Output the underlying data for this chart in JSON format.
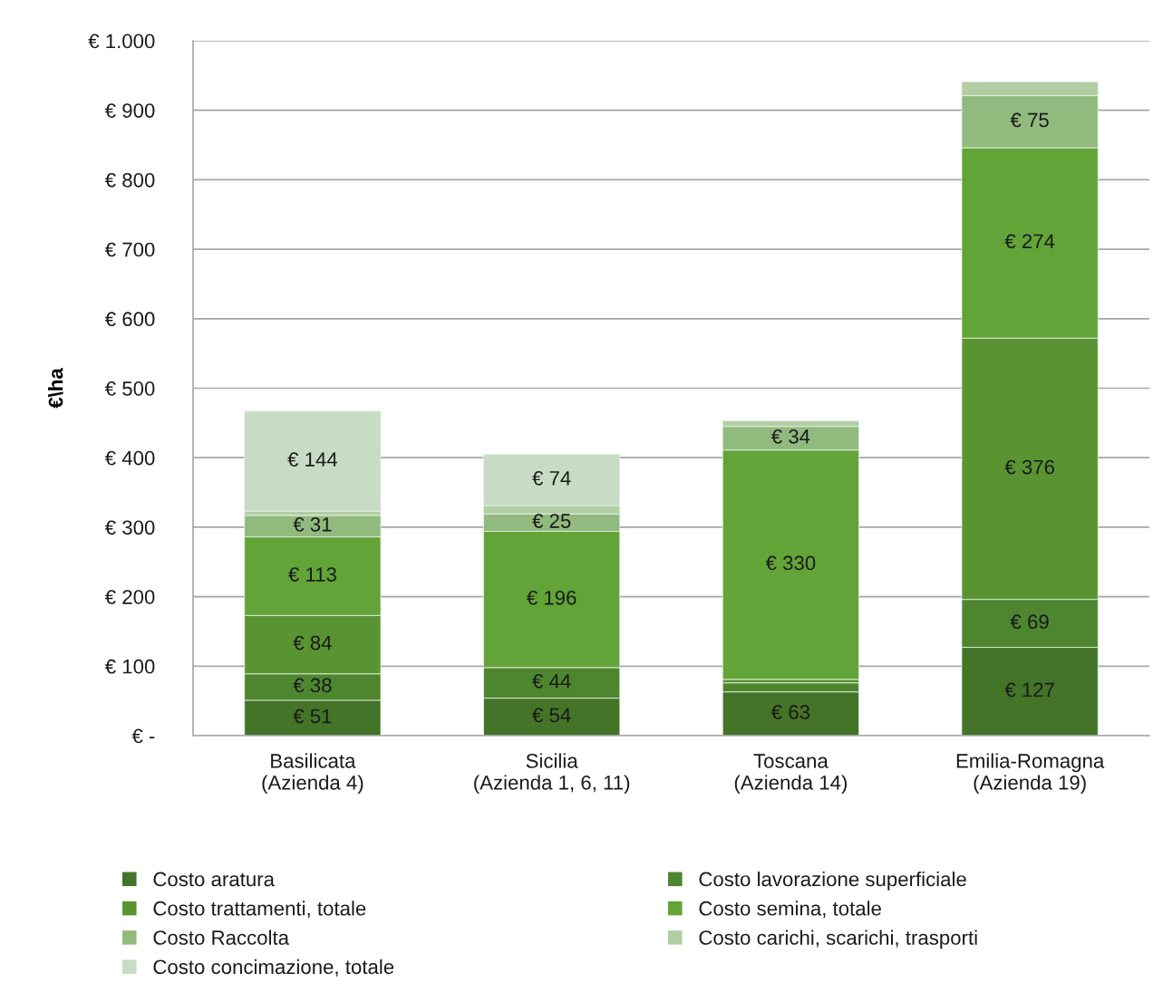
{
  "chart_data": {
    "type": "bar",
    "stacked": true,
    "ylabel": "€\\ha",
    "categories": [
      "Basilicata\n(Azienda 4)",
      "Sicilia\n(Azienda 1, 6, 11)",
      "Toscana\n(Azienda 14)",
      "Emilia-Romagna\n(Azienda 19)"
    ],
    "series": [
      {
        "name": "Costo aratura",
        "color": "#437428",
        "values": [
          51,
          54,
          63,
          127
        ],
        "value_labels": [
          "€ 51",
          "€ 54",
          "€ 63",
          "€ 127"
        ]
      },
      {
        "name": "Costo lavorazione superficiale",
        "color": "#4e8630",
        "values": [
          38,
          44,
          13,
          69
        ],
        "value_labels": [
          "€ 38",
          "€ 44",
          null,
          "€ 69"
        ]
      },
      {
        "name": "Costo trattamenti, totale",
        "color": "#5a9432",
        "values": [
          84,
          null,
          5,
          376
        ],
        "value_labels": [
          "€ 84",
          null,
          null,
          "€ 376"
        ]
      },
      {
        "name": "Costo semina, totale",
        "color": "#62a438",
        "values": [
          113,
          196,
          330,
          274
        ],
        "value_labels": [
          "€ 113",
          "€ 196",
          "€ 330",
          "€ 274"
        ]
      },
      {
        "name": "Costo Raccolta",
        "color": "#91ba7e",
        "values": [
          31,
          25,
          34,
          75
        ],
        "value_labels": [
          "€ 31",
          "€ 25",
          "€ 34",
          "€ 75"
        ]
      },
      {
        "name": "Costo carichi, scarichi, trasporti",
        "color": "#b1cea4",
        "values": [
          6,
          12,
          8,
          20
        ],
        "value_labels": [
          null,
          null,
          null,
          null
        ]
      },
      {
        "name": "Costo concimazione, totale",
        "color": "#c8dcc5",
        "values": [
          144,
          74,
          null,
          null
        ],
        "value_labels": [
          "€ 144",
          "€ 74",
          null,
          null
        ]
      }
    ],
    "ylim": [
      0,
      1000
    ],
    "yticks": [
      {
        "value": 0,
        "label": "€ -"
      },
      {
        "value": 100,
        "label": "€ 100"
      },
      {
        "value": 200,
        "label": "€ 200"
      },
      {
        "value": 300,
        "label": "€ 300"
      },
      {
        "value": 400,
        "label": "€ 400"
      },
      {
        "value": 500,
        "label": "€ 500"
      },
      {
        "value": 600,
        "label": "€ 600"
      },
      {
        "value": 700,
        "label": "€ 700"
      },
      {
        "value": 800,
        "label": "€ 800"
      },
      {
        "value": 900,
        "label": "€ 900"
      },
      {
        "value": 1000,
        "label": "€ 1.000"
      }
    ],
    "grid": "y",
    "legend": "bottom"
  }
}
